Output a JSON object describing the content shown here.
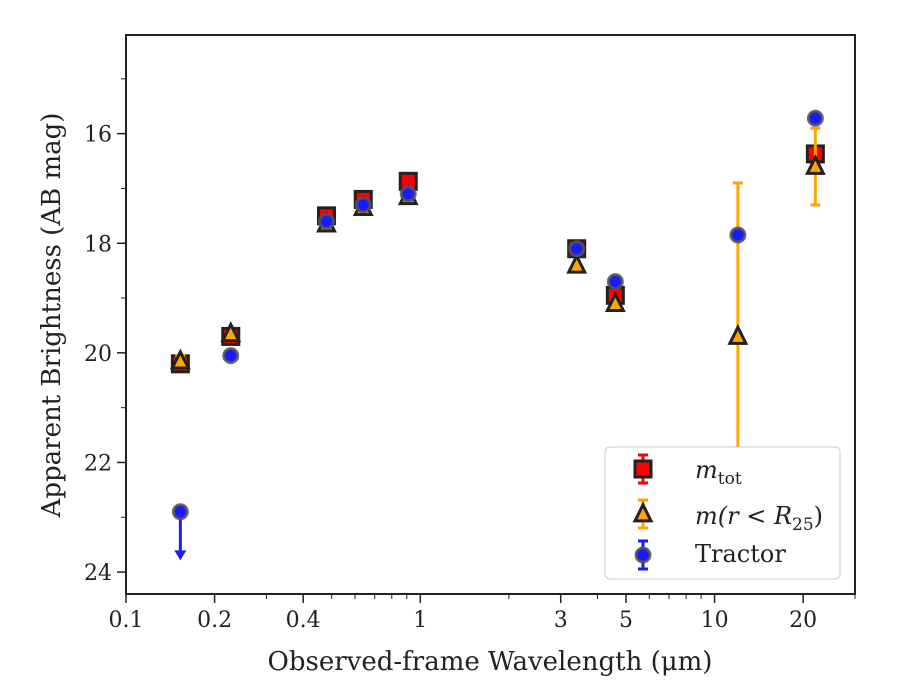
{
  "chart_data": {
    "type": "scatter",
    "xlabel": "Observed-frame Wavelength (μm)",
    "ylabel": "Apparent Brightness (AB mag)",
    "x_scale": "log",
    "xlim": [
      0.1,
      30
    ],
    "ylim": [
      24.4,
      14.2
    ],
    "y_inverted": true,
    "x_ticks": [
      0.1,
      0.2,
      0.4,
      1,
      3,
      5,
      10,
      20
    ],
    "x_tick_labels": [
      "0.1",
      "0.2",
      "0.4",
      "1",
      "3",
      "5",
      "10",
      "20"
    ],
    "y_ticks": [
      16,
      18,
      20,
      22,
      24
    ],
    "y_tick_labels": [
      "16",
      "18",
      "20",
      "22",
      "24"
    ],
    "grid": false,
    "legend_position": "lower-right",
    "series": [
      {
        "name_parts": [
          "m",
          "tot"
        ],
        "marker": "square",
        "color": "#ff0000",
        "edge": "#222222",
        "error_color": "#ff0000",
        "points": [
          {
            "x": 0.153,
            "y": 20.2
          },
          {
            "x": 0.227,
            "y": 19.7
          },
          {
            "x": 0.48,
            "y": 17.5
          },
          {
            "x": 0.64,
            "y": 17.2
          },
          {
            "x": 0.91,
            "y": 16.87
          },
          {
            "x": 3.4,
            "y": 18.1
          },
          {
            "x": 4.6,
            "y": 18.95
          },
          {
            "x": 22.0,
            "y": 16.37
          }
        ]
      },
      {
        "name_parts": [
          "m(r < R",
          "25",
          ")"
        ],
        "marker": "triangle",
        "color": "#ffa500",
        "edge": "#222222",
        "error_color": "#ffa500",
        "points": [
          {
            "x": 0.153,
            "y": 20.15,
            "err": 0.1
          },
          {
            "x": 0.227,
            "y": 19.65
          },
          {
            "x": 0.48,
            "y": 17.65
          },
          {
            "x": 0.64,
            "y": 17.35
          },
          {
            "x": 0.91,
            "y": 17.15
          },
          {
            "x": 3.4,
            "y": 18.4
          },
          {
            "x": 4.6,
            "y": 19.1
          },
          {
            "x": 12.0,
            "y": 19.7,
            "err_low": 16.9,
            "err_high": 22.5
          },
          {
            "x": 22.0,
            "y": 16.6,
            "err_low": 15.9,
            "err_high": 17.3
          }
        ]
      },
      {
        "name": "Tractor",
        "marker": "circle",
        "color": "#1a1aff",
        "edge": "#555555",
        "error_color": "#1a1aff",
        "points": [
          {
            "x": 0.153,
            "y": 22.9,
            "upper_limit": true
          },
          {
            "x": 0.227,
            "y": 20.05
          },
          {
            "x": 0.48,
            "y": 17.6
          },
          {
            "x": 0.64,
            "y": 17.3
          },
          {
            "x": 0.91,
            "y": 17.1
          },
          {
            "x": 3.4,
            "y": 18.1
          },
          {
            "x": 4.6,
            "y": 18.7
          },
          {
            "x": 12.0,
            "y": 17.85
          },
          {
            "x": 22.0,
            "y": 15.72
          }
        ]
      }
    ]
  }
}
